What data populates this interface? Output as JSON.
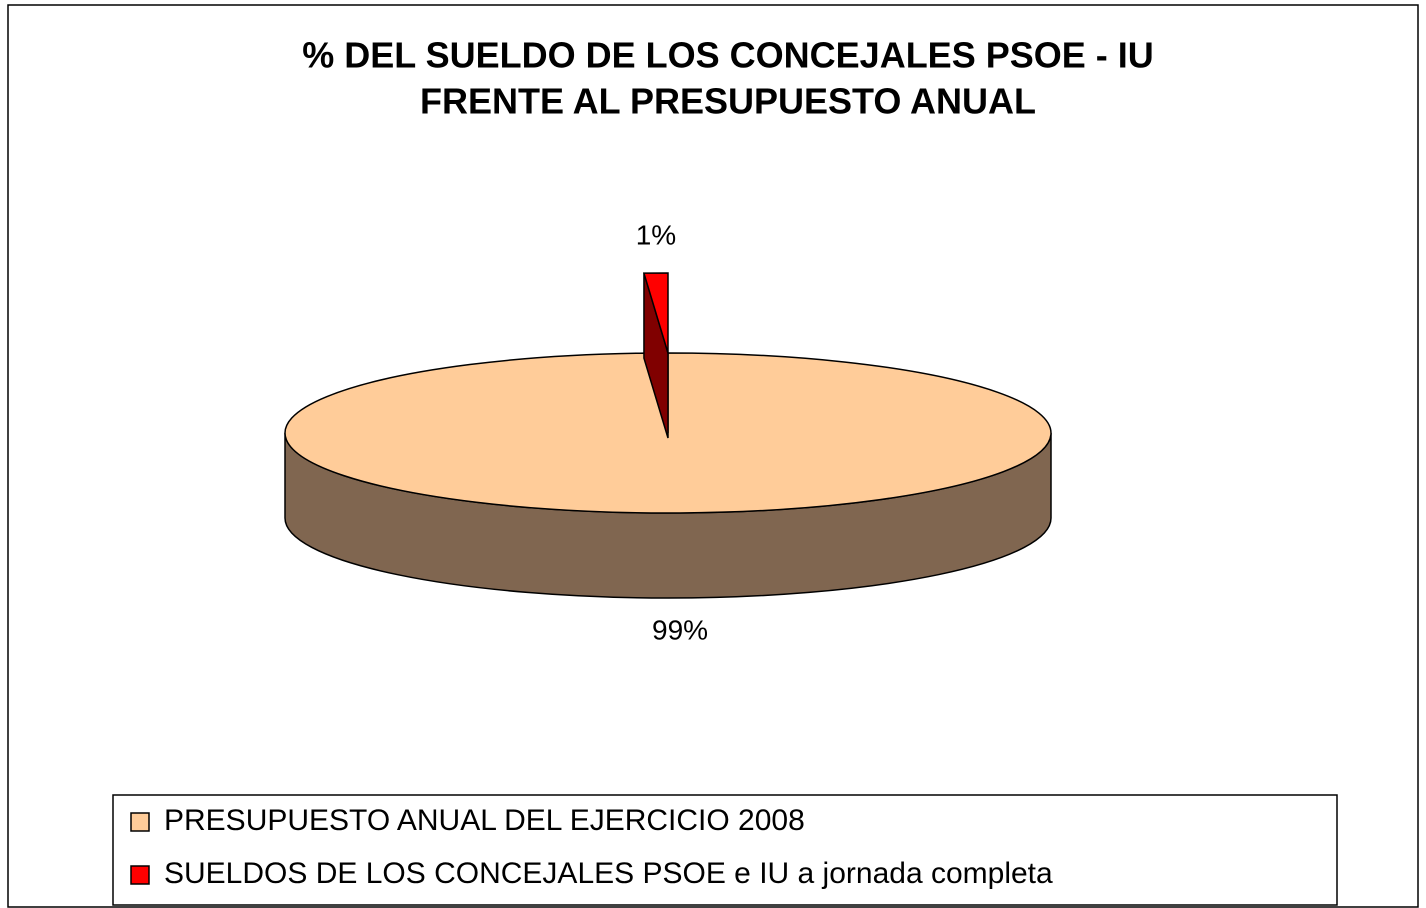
{
  "chart_data": {
    "type": "pie",
    "title": [
      "% DEL SUELDO DE LOS CONCEJALES PSOE - IU",
      "FRENTE AL PRESUPUESTO ANUAL"
    ],
    "categories": [
      "PRESUPUESTO ANUAL DEL EJERCICIO 2008",
      "SUELDOS DE LOS CONCEJALES PSOE e IU a jornada completa"
    ],
    "values": [
      99,
      1
    ],
    "value_labels": [
      "99%",
      "1%"
    ],
    "colors": [
      "#FFCC99",
      "#FF0000"
    ],
    "side_colors": [
      "#806650",
      "#800000"
    ],
    "exploded": [
      false,
      true
    ],
    "legend": "bottom"
  }
}
